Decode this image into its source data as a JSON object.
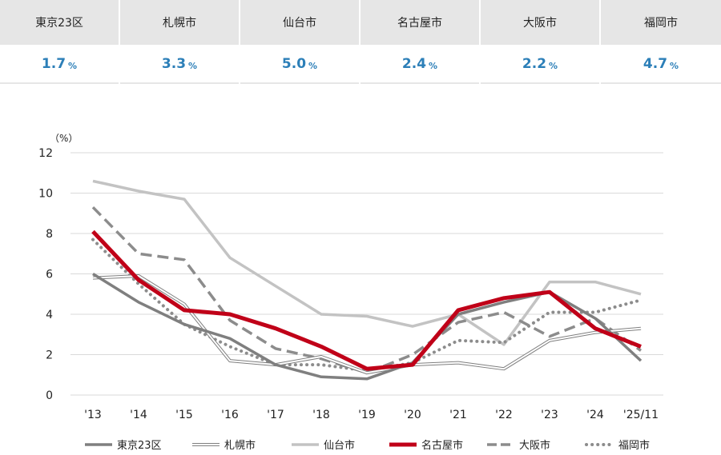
{
  "stats": [
    {
      "city": "東京23区",
      "value": "1.7",
      "unit": "%"
    },
    {
      "city": "札幌市",
      "value": "3.3",
      "unit": "%"
    },
    {
      "city": "仙台市",
      "value": "5.0",
      "unit": "%"
    },
    {
      "city": "名古屋市",
      "value": "2.4",
      "unit": "%"
    },
    {
      "city": "大阪市",
      "value": "2.2",
      "unit": "%"
    },
    {
      "city": "福岡市",
      "value": "4.7",
      "unit": "%"
    }
  ],
  "chart_data": {
    "type": "line",
    "ylabel": "（%）",
    "ylim": [
      0,
      12
    ],
    "yticks": [
      0,
      2,
      4,
      6,
      8,
      10,
      12
    ],
    "grid": "horizontal",
    "legend_position": "bottom",
    "categories": [
      "'13",
      "'14",
      "'15",
      "'16",
      "'17",
      "'18",
      "'19",
      "'20",
      "'21",
      "'22",
      "'23",
      "'24",
      "'25/11"
    ],
    "series": [
      {
        "name": "東京23区",
        "color": "#7f7f7f",
        "style": "solid",
        "width": 3.5,
        "values": [
          6.0,
          4.6,
          3.5,
          2.8,
          1.5,
          0.9,
          0.8,
          1.6,
          4.0,
          4.6,
          5.1,
          3.8,
          1.7
        ]
      },
      {
        "name": "札幌市",
        "color": "#7f7f7f",
        "style": "double",
        "width": 4,
        "values": [
          5.8,
          5.9,
          4.5,
          1.7,
          1.5,
          1.9,
          1.1,
          1.5,
          1.6,
          1.3,
          2.7,
          3.1,
          3.3
        ]
      },
      {
        "name": "仙台市",
        "color": "#c3c3c3",
        "style": "solid",
        "width": 3.5,
        "values": [
          10.6,
          10.1,
          9.7,
          6.8,
          5.4,
          4.0,
          3.9,
          3.4,
          4.0,
          2.5,
          5.6,
          5.6,
          5.0
        ]
      },
      {
        "name": "名古屋市",
        "color": "#c00018",
        "style": "solid",
        "width": 5,
        "values": [
          8.1,
          5.7,
          4.2,
          4.0,
          3.3,
          2.4,
          1.3,
          1.5,
          4.2,
          4.8,
          5.1,
          3.3,
          2.4
        ]
      },
      {
        "name": "大阪市",
        "color": "#8c8c8c",
        "style": "dashed",
        "width": 3.5,
        "values": [
          9.3,
          7.0,
          6.7,
          3.7,
          2.3,
          1.8,
          1.1,
          2.0,
          3.6,
          4.1,
          2.9,
          3.8,
          2.2
        ]
      },
      {
        "name": "福岡市",
        "color": "#8c8c8c",
        "style": "dotted",
        "width": 3.5,
        "values": [
          7.7,
          5.5,
          3.5,
          2.4,
          1.5,
          1.5,
          1.2,
          1.6,
          2.7,
          2.6,
          4.1,
          4.1,
          4.7
        ]
      }
    ]
  }
}
